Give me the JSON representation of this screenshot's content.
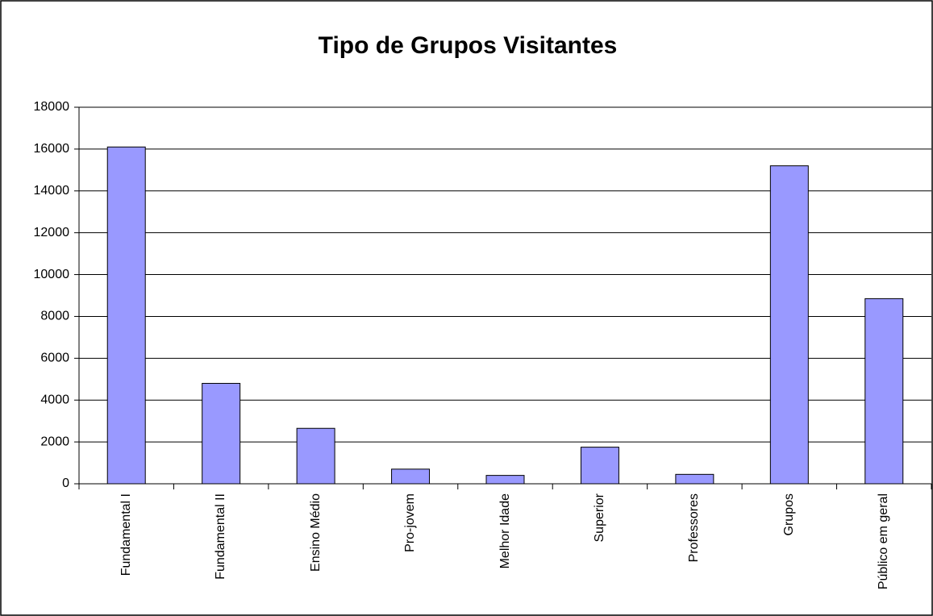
{
  "chart_data": {
    "type": "bar",
    "title": "Tipo de Grupos Visitantes",
    "categories": [
      "Fundamental I",
      "Fundamental II",
      "Ensino Médio",
      "Pro-jovem",
      "Melhor Idade",
      "Superior",
      "Professores",
      "Grupos",
      "Público em geral"
    ],
    "values": [
      16100,
      4800,
      2650,
      700,
      400,
      1750,
      450,
      15200,
      8850
    ],
    "color": "#9999ff",
    "ylim": [
      0,
      18000
    ],
    "yticks": [
      0,
      2000,
      4000,
      6000,
      8000,
      10000,
      12000,
      14000,
      16000,
      18000
    ],
    "grid": true
  }
}
